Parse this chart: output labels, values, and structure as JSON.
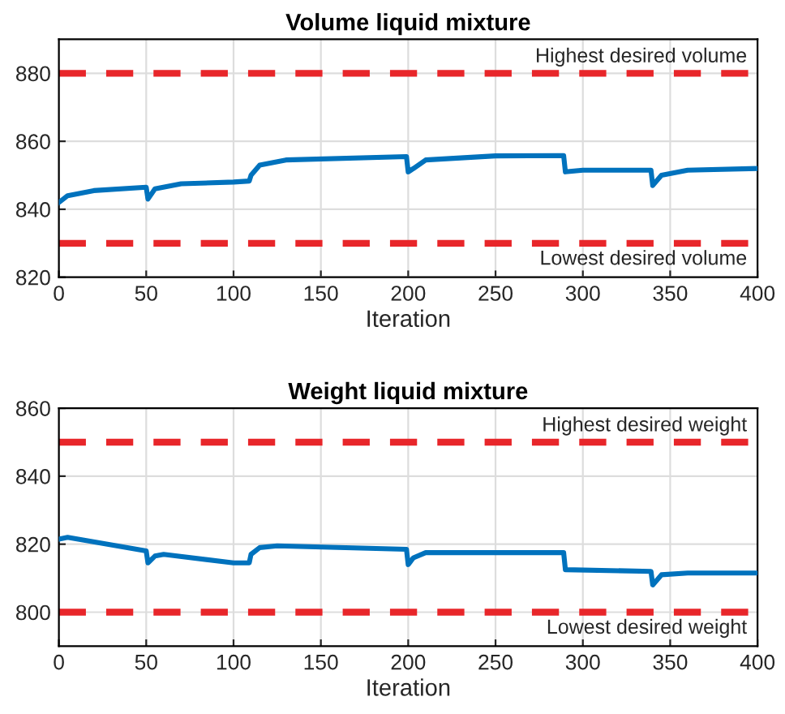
{
  "chart_data": [
    {
      "type": "line",
      "title": "Volume liquid mixture",
      "xlabel": "Iteration",
      "xlim": [
        0,
        400
      ],
      "xticks": [
        0,
        50,
        100,
        150,
        200,
        250,
        300,
        350,
        400
      ],
      "ylim": [
        820,
        890
      ],
      "yticks": [
        820,
        840,
        860,
        880
      ],
      "grid": true,
      "legend": false,
      "x": [
        0,
        5,
        20,
        50,
        51,
        55,
        70,
        100,
        109,
        110,
        115,
        130,
        199,
        200,
        203,
        210,
        250,
        289,
        290,
        300,
        339,
        340,
        345,
        360,
        400
      ],
      "series": [
        {
          "color": "#0072bd",
          "values": [
            842,
            844,
            845.5,
            846.5,
            843,
            846,
            847.5,
            848,
            848.3,
            850,
            853,
            854.5,
            855.5,
            851,
            852,
            854.5,
            855.7,
            855.8,
            851,
            851.5,
            851.5,
            847,
            850,
            851.5,
            852
          ]
        }
      ],
      "ref_lines": [
        {
          "axis": "y",
          "value": 880,
          "label": "Highest desired volume",
          "color": "#e8262a",
          "line_style": "dashed"
        },
        {
          "axis": "y",
          "value": 830,
          "label": "Lowest desired volume",
          "color": "#e8262a",
          "line_style": "dashed"
        }
      ]
    },
    {
      "type": "line",
      "title": "Weight liquid mixture",
      "xlabel": "Iteration",
      "xlim": [
        0,
        400
      ],
      "xticks": [
        0,
        50,
        100,
        150,
        200,
        250,
        300,
        350,
        400
      ],
      "ylim": [
        790,
        860
      ],
      "yticks": [
        800,
        820,
        840,
        860
      ],
      "grid": true,
      "legend": false,
      "x": [
        0,
        5,
        50,
        51,
        55,
        60,
        100,
        109,
        110,
        115,
        125,
        199,
        200,
        203,
        210,
        289,
        290,
        339,
        340,
        345,
        360,
        400
      ],
      "series": [
        {
          "color": "#0072bd",
          "values": [
            821.5,
            822,
            818,
            814.5,
            816.5,
            817,
            814.5,
            814.5,
            817,
            819,
            819.5,
            818.5,
            814,
            816,
            817.5,
            817.5,
            812.5,
            812,
            808,
            811,
            811.5,
            811.5
          ]
        }
      ],
      "ref_lines": [
        {
          "axis": "y",
          "value": 850,
          "label": "Highest desired weight",
          "color": "#e8262a",
          "line_style": "dashed"
        },
        {
          "axis": "y",
          "value": 800,
          "label": "Lowest desired weight",
          "color": "#e8262a",
          "line_style": "dashed"
        }
      ]
    }
  ]
}
